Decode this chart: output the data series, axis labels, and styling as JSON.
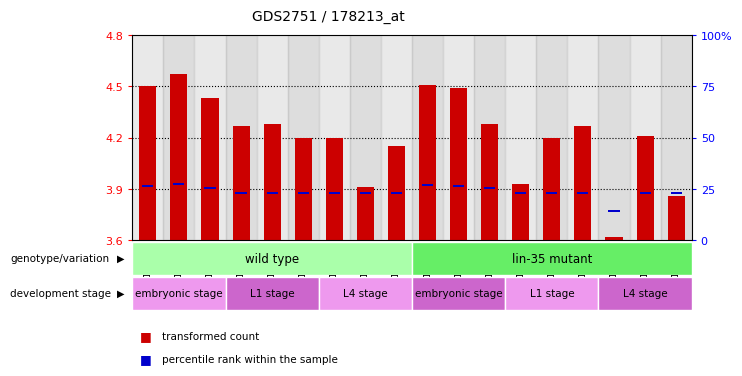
{
  "title": "GDS2751 / 178213_at",
  "samples": [
    "GSM147340",
    "GSM147341",
    "GSM147342",
    "GSM146422",
    "GSM146423",
    "GSM147330",
    "GSM147334",
    "GSM147335",
    "GSM147336",
    "GSM147344",
    "GSM147345",
    "GSM147346",
    "GSM147331",
    "GSM147332",
    "GSM147333",
    "GSM147337",
    "GSM147338",
    "GSM147339"
  ],
  "bar_tops": [
    4.5,
    4.57,
    4.43,
    4.27,
    4.28,
    4.2,
    4.2,
    3.91,
    4.15,
    4.51,
    4.49,
    4.28,
    3.93,
    4.2,
    4.27,
    3.62,
    4.21,
    3.86
  ],
  "blue_markers": [
    3.92,
    3.93,
    3.905,
    3.875,
    3.875,
    3.875,
    3.875,
    3.875,
    3.875,
    3.925,
    3.92,
    3.905,
    3.875,
    3.875,
    3.875,
    3.77,
    3.875,
    3.875
  ],
  "bar_bottom": 3.6,
  "ylim_left": [
    3.6,
    4.8
  ],
  "ylim_right": [
    0,
    100
  ],
  "yticks_left": [
    3.6,
    3.9,
    4.2,
    4.5,
    4.8
  ],
  "yticks_right": [
    0,
    25,
    50,
    75,
    100
  ],
  "ytick_right_labels": [
    "0",
    "25",
    "50",
    "75",
    "100%"
  ],
  "bar_color": "#cc0000",
  "blue_color": "#0000cc",
  "genotype_groups": [
    {
      "label": "wild type",
      "start": 0,
      "end": 9,
      "color": "#aaffaa"
    },
    {
      "label": "lin-35 mutant",
      "start": 9,
      "end": 18,
      "color": "#66ee66"
    }
  ],
  "dev_stage_groups": [
    {
      "label": "embryonic stage",
      "start": 0,
      "end": 3,
      "color": "#ee99ee"
    },
    {
      "label": "L1 stage",
      "start": 3,
      "end": 6,
      "color": "#cc66cc"
    },
    {
      "label": "L4 stage",
      "start": 6,
      "end": 9,
      "color": "#ee99ee"
    },
    {
      "label": "embryonic stage",
      "start": 9,
      "end": 12,
      "color": "#cc66cc"
    },
    {
      "label": "L1 stage",
      "start": 12,
      "end": 15,
      "color": "#ee99ee"
    },
    {
      "label": "L4 stage",
      "start": 15,
      "end": 18,
      "color": "#cc66cc"
    }
  ],
  "legend_items": [
    {
      "label": "transformed count",
      "color": "#cc0000"
    },
    {
      "label": "percentile rank within the sample",
      "color": "#0000cc"
    }
  ]
}
